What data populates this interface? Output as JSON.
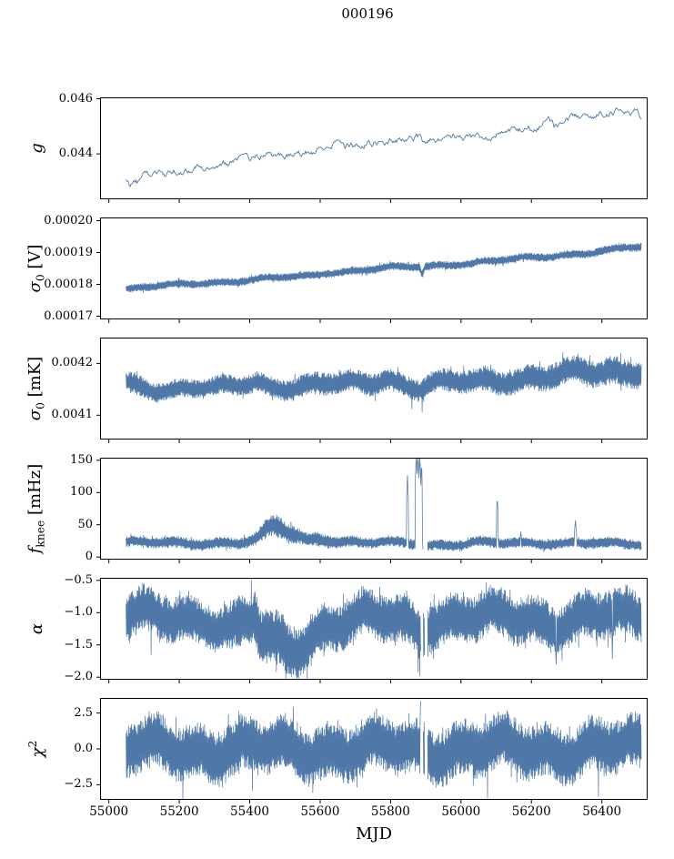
{
  "chart_data": {
    "type": "line",
    "title": "000196",
    "xlabel": "MJD",
    "line_color": "#4f78a8",
    "axis_color": "#000000",
    "background": "#ffffff",
    "grid": false,
    "legend": "none",
    "xlim": [
      54975,
      56530
    ],
    "x_data_range": [
      55049,
      56512
    ],
    "xticks": [
      55000,
      55200,
      55400,
      55600,
      55800,
      56000,
      56200,
      56400
    ],
    "panels": [
      {
        "id": "g",
        "ylabel_text": "g",
        "ylabel_segments": [
          {
            "t": "g",
            "s": "i"
          }
        ],
        "style": "line",
        "ylim": [
          0.04235,
          0.04605
        ],
        "yticks": [
          {
            "v": 0.046,
            "label": "0.046"
          },
          {
            "v": 0.044,
            "label": "0.044"
          }
        ],
        "noise_amp": 0.00018,
        "trend": [
          [
            55049,
            0.043
          ],
          [
            55058,
            0.04287
          ],
          [
            55070,
            0.04302
          ],
          [
            55085,
            0.04295
          ],
          [
            55100,
            0.04315
          ],
          [
            55130,
            0.04322
          ],
          [
            55170,
            0.0433
          ],
          [
            55210,
            0.0434
          ],
          [
            55250,
            0.0435
          ],
          [
            55290,
            0.04358
          ],
          [
            55330,
            0.04368
          ],
          [
            55370,
            0.04374
          ],
          [
            55400,
            0.04378
          ],
          [
            55430,
            0.04385
          ],
          [
            55445,
            0.04408
          ],
          [
            55462,
            0.04382
          ],
          [
            55480,
            0.04398
          ],
          [
            55510,
            0.04395
          ],
          [
            55545,
            0.044
          ],
          [
            55580,
            0.04408
          ],
          [
            55600,
            0.04438
          ],
          [
            55615,
            0.04412
          ],
          [
            55635,
            0.04428
          ],
          [
            55655,
            0.04438
          ],
          [
            55675,
            0.04425
          ],
          [
            55695,
            0.04435
          ],
          [
            55720,
            0.04432
          ],
          [
            55750,
            0.0444
          ],
          [
            55785,
            0.04448
          ],
          [
            55820,
            0.04452
          ],
          [
            55855,
            0.04458
          ],
          [
            55880,
            0.04462
          ],
          [
            55895,
            0.04432
          ],
          [
            55912,
            0.04458
          ],
          [
            55935,
            0.04452
          ],
          [
            55960,
            0.0446
          ],
          [
            55990,
            0.04465
          ],
          [
            56020,
            0.04462
          ],
          [
            56050,
            0.04468
          ],
          [
            56085,
            0.04472
          ],
          [
            56120,
            0.04478
          ],
          [
            56155,
            0.0448
          ],
          [
            56190,
            0.04488
          ],
          [
            56225,
            0.045
          ],
          [
            56250,
            0.0452
          ],
          [
            56265,
            0.045
          ],
          [
            56285,
            0.0451
          ],
          [
            56310,
            0.04528
          ],
          [
            56340,
            0.04535
          ],
          [
            56370,
            0.0454
          ],
          [
            56400,
            0.04548
          ],
          [
            56430,
            0.0455
          ],
          [
            56455,
            0.04555
          ],
          [
            56480,
            0.04548
          ],
          [
            56500,
            0.04552
          ],
          [
            56512,
            0.04538
          ]
        ]
      },
      {
        "id": "sigma0_V",
        "ylabel_text": "sigma0 [V]",
        "ylabel_segments": [
          {
            "t": "σ",
            "s": "i"
          },
          {
            "t": "0",
            "s": "sub"
          },
          {
            "t": " [V]",
            "s": ""
          }
        ],
        "style": "band",
        "ylim": [
          0.000169,
          0.000201
        ],
        "yticks": [
          {
            "v": 0.0002,
            "label": "0.00020"
          },
          {
            "v": 0.00019,
            "label": "0.00019"
          },
          {
            "v": 0.00018,
            "label": "0.00018"
          },
          {
            "v": 0.00017,
            "label": "0.00017"
          }
        ],
        "amp_anchors": [
          [
            55049,
            1.2e-06
          ],
          [
            56512,
            1.3e-06
          ]
        ],
        "trend": [
          [
            55049,
            0.0001785
          ],
          [
            55150,
            0.0001795
          ],
          [
            55250,
            0.0001803
          ],
          [
            55350,
            0.000181
          ],
          [
            55450,
            0.0001818
          ],
          [
            55550,
            0.0001825
          ],
          [
            55585,
            0.0001828
          ],
          [
            55615,
            0.0001837
          ],
          [
            55700,
            0.0001843
          ],
          [
            55790,
            0.0001852
          ],
          [
            55855,
            0.0001853
          ],
          [
            55882,
            0.0001854
          ],
          [
            55890,
            0.0001832
          ],
          [
            55898,
            0.0001856
          ],
          [
            55960,
            0.0001862
          ],
          [
            56040,
            0.0001869
          ],
          [
            56120,
            0.0001876
          ],
          [
            56200,
            0.0001883
          ],
          [
            56280,
            0.0001891
          ],
          [
            56360,
            0.00019
          ],
          [
            56430,
            0.0001909
          ],
          [
            56470,
            0.0001914
          ],
          [
            56512,
            0.0001916
          ]
        ]
      },
      {
        "id": "sigma0_mK",
        "ylabel_text": "sigma0 [mK]",
        "ylabel_segments": [
          {
            "t": "σ",
            "s": "i"
          },
          {
            "t": "0",
            "s": "sub"
          },
          {
            "t": " [mK]",
            "s": ""
          }
        ],
        "style": "band",
        "ylim": [
          0.004053,
          0.00425
        ],
        "yticks": [
          {
            "v": 0.0042,
            "label": "0.0042"
          },
          {
            "v": 0.0041,
            "label": "0.0041"
          }
        ],
        "amp_anchors": [
          [
            55049,
            2.1e-05
          ],
          [
            55150,
            1.8e-05
          ],
          [
            55400,
            1.9e-05
          ],
          [
            55600,
            2.2e-05
          ],
          [
            55900,
            2.1e-05
          ],
          [
            56100,
            2.4e-05
          ],
          [
            56300,
            2.6e-05
          ],
          [
            56512,
            2.8e-05
          ]
        ],
        "trend": [
          [
            55049,
            0.004162
          ],
          [
            55090,
            0.004156
          ],
          [
            55140,
            0.00415
          ],
          [
            55220,
            0.004152
          ],
          [
            55300,
            0.004151
          ],
          [
            55360,
            0.004155
          ],
          [
            55420,
            0.004166
          ],
          [
            55455,
            0.004156
          ],
          [
            55520,
            0.004155
          ],
          [
            55600,
            0.004158
          ],
          [
            55660,
            0.004161
          ],
          [
            55740,
            0.004162
          ],
          [
            55790,
            0.004172
          ],
          [
            55830,
            0.004162
          ],
          [
            55880,
            0.004152
          ],
          [
            55915,
            0.00416
          ],
          [
            55980,
            0.004162
          ],
          [
            56060,
            0.004166
          ],
          [
            56140,
            0.00417
          ],
          [
            56220,
            0.004174
          ],
          [
            56300,
            0.004178
          ],
          [
            56380,
            0.004182
          ],
          [
            56450,
            0.004186
          ],
          [
            56512,
            0.00419
          ]
        ],
        "outliers": [
          [
            55860,
            0.004112
          ],
          [
            55890,
            0.004106
          ]
        ]
      },
      {
        "id": "fknee",
        "ylabel_text": "fknee [mHz]",
        "ylabel_segments": [
          {
            "t": "f",
            "s": "i"
          },
          {
            "t": "knee",
            "s": "sub"
          },
          {
            "t": " [mHz]",
            "s": ""
          }
        ],
        "style": "band",
        "ylim": [
          -4,
          154
        ],
        "yticks": [
          {
            "v": 150,
            "label": "150"
          },
          {
            "v": 100,
            "label": "100"
          },
          {
            "v": 50,
            "label": "50"
          },
          {
            "v": 0,
            "label": "0"
          }
        ],
        "amp_anchors": [
          [
            55049,
            8
          ],
          [
            55400,
            9
          ],
          [
            55450,
            15
          ],
          [
            55480,
            18
          ],
          [
            55520,
            14
          ],
          [
            55560,
            10
          ],
          [
            55600,
            11
          ],
          [
            55650,
            9
          ],
          [
            55720,
            8
          ],
          [
            56512,
            8
          ]
        ],
        "trend": [
          [
            55049,
            22
          ],
          [
            55380,
            22
          ],
          [
            55420,
            26
          ],
          [
            55450,
            40
          ],
          [
            55475,
            48
          ],
          [
            55500,
            42
          ],
          [
            55530,
            34
          ],
          [
            55560,
            27
          ],
          [
            55590,
            30
          ],
          [
            55620,
            28
          ],
          [
            55660,
            24
          ],
          [
            55720,
            22
          ],
          [
            55840,
            22
          ],
          [
            55908,
            19
          ],
          [
            55990,
            20
          ],
          [
            56040,
            23
          ],
          [
            56090,
            21
          ],
          [
            56200,
            21
          ],
          [
            56330,
            23
          ],
          [
            56400,
            21
          ],
          [
            56512,
            19
          ]
        ],
        "spikes": [
          [
            55848,
            127,
            2.5
          ],
          [
            55873,
            162,
            3
          ],
          [
            55878,
            166,
            3
          ],
          [
            55883,
            160,
            3
          ],
          [
            55888,
            150,
            2
          ],
          [
            56103,
            92,
            2.5
          ],
          [
            56170,
            40,
            2
          ],
          [
            56325,
            58,
            2.5
          ]
        ],
        "gaps": [
          [
            55892,
            55905
          ]
        ]
      },
      {
        "id": "alpha",
        "ylabel_text": "alpha",
        "ylabel_segments": [
          {
            "t": "α",
            "s": "i"
          }
        ],
        "style": "band",
        "ylim": [
          -2.04,
          -0.46
        ],
        "yticks": [
          {
            "v": -0.5,
            "label": "−0.5"
          },
          {
            "v": -1.0,
            "label": "−1.0"
          },
          {
            "v": -1.5,
            "label": "−1.5"
          },
          {
            "v": -2.0,
            "label": "−2.0"
          }
        ],
        "amp_anchors": [
          [
            55049,
            0.38
          ],
          [
            55300,
            0.34
          ],
          [
            55430,
            0.44
          ],
          [
            55560,
            0.42
          ],
          [
            55620,
            0.38
          ],
          [
            56512,
            0.38
          ]
        ],
        "trend": [
          [
            55049,
            -1.07
          ],
          [
            55280,
            -1.07
          ],
          [
            55310,
            -1.2
          ],
          [
            55350,
            -1.28
          ],
          [
            55390,
            -1.15
          ],
          [
            55415,
            -1.08
          ],
          [
            55435,
            -1.45
          ],
          [
            55470,
            -1.52
          ],
          [
            55520,
            -1.55
          ],
          [
            55560,
            -1.45
          ],
          [
            55590,
            -1.28
          ],
          [
            55620,
            -1.18
          ],
          [
            55680,
            -1.1
          ],
          [
            55800,
            -1.12
          ],
          [
            55860,
            -1.2
          ],
          [
            55885,
            -1.3
          ],
          [
            55910,
            -1.12
          ],
          [
            56000,
            -1.06
          ],
          [
            56100,
            -1.1
          ],
          [
            56200,
            -1.1
          ],
          [
            56260,
            -1.15
          ],
          [
            56320,
            -1.1
          ],
          [
            56400,
            -1.06
          ],
          [
            56512,
            -1.08
          ]
        ],
        "outliers": [
          [
            55120,
            -1.65
          ],
          [
            55405,
            -0.5
          ],
          [
            55878,
            -1.92
          ],
          [
            55883,
            -1.98
          ],
          [
            56270,
            -1.8
          ],
          [
            56430,
            -1.72
          ]
        ],
        "gaps": [
          [
            55886,
            55892
          ],
          [
            55897,
            55905
          ]
        ]
      },
      {
        "id": "chi2",
        "ylabel_text": "chi^2",
        "ylabel_segments": [
          {
            "t": "χ",
            "s": "i"
          },
          {
            "t": "2",
            "s": "sup"
          }
        ],
        "style": "band",
        "ylim": [
          -3.55,
          3.55
        ],
        "yticks": [
          {
            "v": 2.5,
            "label": "2.5"
          },
          {
            "v": 0.0,
            "label": "0.0"
          },
          {
            "v": -2.5,
            "label": "−2.5"
          }
        ],
        "amp_anchors": [
          [
            55049,
            1.95
          ],
          [
            56512,
            1.95
          ]
        ],
        "trend": [
          [
            55049,
            0
          ],
          [
            56512,
            0
          ]
        ],
        "outliers": [
          [
            55210,
            -3.5
          ],
          [
            55408,
            -2.9
          ],
          [
            55885,
            3.35
          ],
          [
            56075,
            -3.4
          ],
          [
            56390,
            -3.3
          ]
        ],
        "gaps": [
          [
            55886,
            55892
          ],
          [
            55897,
            55905
          ]
        ]
      }
    ]
  }
}
